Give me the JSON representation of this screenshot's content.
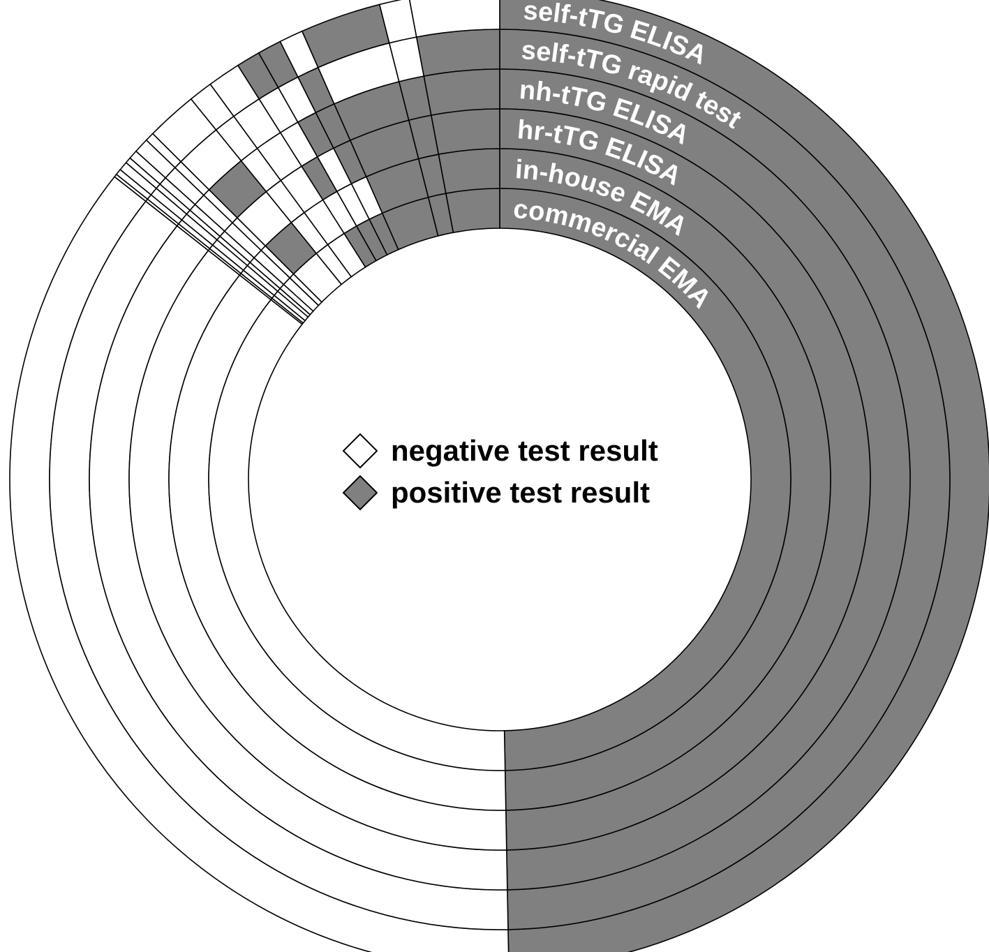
{
  "chart_data": {
    "type": "concentric-ring",
    "description_order": "rings listed outermost to innermost; segments listed clockwise from 12 o'clock",
    "colors": {
      "positive": "#808080",
      "negative": "#ffffff",
      "stroke": "#000000"
    },
    "legend": {
      "placement": "center",
      "items": [
        {
          "label": "negative test result",
          "result": "negative",
          "icon": "diamond-outline"
        },
        {
          "label": "positive test result",
          "result": "positive",
          "icon": "diamond-filled"
        }
      ]
    },
    "rings": [
      {
        "label": "self-tTG ELISA",
        "segments": [
          {
            "pct": 50.4,
            "result": "positive"
          },
          {
            "pct": 36.4,
            "result": "negative"
          },
          {
            "pct": 0.1,
            "result": "negative"
          },
          {
            "pct": 0.2,
            "result": "negative"
          },
          {
            "pct": 0.3,
            "result": "negative"
          },
          {
            "pct": 0.2,
            "result": "negative"
          },
          {
            "pct": 0.3,
            "result": "negative"
          },
          {
            "pct": 0.5,
            "result": "negative"
          },
          {
            "pct": 0.3,
            "result": "negative"
          },
          {
            "pct": 1.7,
            "result": "negative"
          },
          {
            "pct": 0.8,
            "result": "negative"
          },
          {
            "pct": 1.1,
            "result": "negative"
          },
          {
            "pct": 0.8,
            "result": "positive"
          },
          {
            "pct": 0.8,
            "result": "positive"
          },
          {
            "pct": 0.8,
            "result": "negative"
          },
          {
            "pct": 2.7,
            "result": "positive"
          },
          {
            "pct": 1.0,
            "result": "negative"
          },
          {
            "pct": 3.0,
            "result": "negative"
          }
        ]
      },
      {
        "label": "self-tTG rapid test",
        "segments": [
          {
            "pct": 50.4,
            "result": "positive"
          },
          {
            "pct": 36.4,
            "result": "negative"
          },
          {
            "pct": 0.1,
            "result": "negative"
          },
          {
            "pct": 0.2,
            "result": "negative"
          },
          {
            "pct": 0.3,
            "result": "negative"
          },
          {
            "pct": 0.2,
            "result": "negative"
          },
          {
            "pct": 0.3,
            "result": "negative"
          },
          {
            "pct": 0.5,
            "result": "negative"
          },
          {
            "pct": 0.3,
            "result": "negative"
          },
          {
            "pct": 1.7,
            "result": "negative"
          },
          {
            "pct": 0.8,
            "result": "negative"
          },
          {
            "pct": 1.1,
            "result": "negative"
          },
          {
            "pct": 0.8,
            "result": "negative"
          },
          {
            "pct": 0.8,
            "result": "negative"
          },
          {
            "pct": 0.8,
            "result": "positive"
          },
          {
            "pct": 2.7,
            "result": "negative"
          },
          {
            "pct": 1.0,
            "result": "negative"
          },
          {
            "pct": 3.0,
            "result": "positive"
          }
        ]
      },
      {
        "label": "nh-tTG ELISA",
        "segments": [
          {
            "pct": 50.4,
            "result": "positive"
          },
          {
            "pct": 36.4,
            "result": "negative"
          },
          {
            "pct": 0.1,
            "result": "negative"
          },
          {
            "pct": 0.2,
            "result": "negative"
          },
          {
            "pct": 0.3,
            "result": "negative"
          },
          {
            "pct": 0.2,
            "result": "negative"
          },
          {
            "pct": 0.3,
            "result": "negative"
          },
          {
            "pct": 0.5,
            "result": "negative"
          },
          {
            "pct": 0.3,
            "result": "negative"
          },
          {
            "pct": 1.7,
            "result": "positive"
          },
          {
            "pct": 0.8,
            "result": "negative"
          },
          {
            "pct": 1.1,
            "result": "negative"
          },
          {
            "pct": 0.8,
            "result": "negative"
          },
          {
            "pct": 0.8,
            "result": "positive"
          },
          {
            "pct": 0.8,
            "result": "positive"
          },
          {
            "pct": 2.7,
            "result": "positive"
          },
          {
            "pct": 1.0,
            "result": "positive"
          },
          {
            "pct": 3.0,
            "result": "positive"
          }
        ]
      },
      {
        "label": "hr-tTG ELISA",
        "segments": [
          {
            "pct": 50.4,
            "result": "positive"
          },
          {
            "pct": 36.4,
            "result": "negative"
          },
          {
            "pct": 0.1,
            "result": "negative"
          },
          {
            "pct": 0.2,
            "result": "negative"
          },
          {
            "pct": 0.3,
            "result": "negative"
          },
          {
            "pct": 0.2,
            "result": "negative"
          },
          {
            "pct": 0.3,
            "result": "negative"
          },
          {
            "pct": 0.5,
            "result": "negative"
          },
          {
            "pct": 0.3,
            "result": "negative"
          },
          {
            "pct": 1.7,
            "result": "negative"
          },
          {
            "pct": 0.8,
            "result": "negative"
          },
          {
            "pct": 1.1,
            "result": "negative"
          },
          {
            "pct": 0.8,
            "result": "positive"
          },
          {
            "pct": 0.8,
            "result": "negative"
          },
          {
            "pct": 0.8,
            "result": "positive"
          },
          {
            "pct": 2.7,
            "result": "positive"
          },
          {
            "pct": 1.0,
            "result": "positive"
          },
          {
            "pct": 3.0,
            "result": "positive"
          }
        ]
      },
      {
        "label": "in-house EMA",
        "segments": [
          {
            "pct": 50.4,
            "result": "positive"
          },
          {
            "pct": 36.4,
            "result": "negative"
          },
          {
            "pct": 0.1,
            "result": "negative"
          },
          {
            "pct": 0.2,
            "result": "negative"
          },
          {
            "pct": 0.3,
            "result": "negative"
          },
          {
            "pct": 0.2,
            "result": "negative"
          },
          {
            "pct": 0.3,
            "result": "negative"
          },
          {
            "pct": 0.5,
            "result": "negative"
          },
          {
            "pct": 0.3,
            "result": "negative"
          },
          {
            "pct": 1.7,
            "result": "positive"
          },
          {
            "pct": 0.8,
            "result": "negative"
          },
          {
            "pct": 1.1,
            "result": "negative"
          },
          {
            "pct": 0.8,
            "result": "negative"
          },
          {
            "pct": 0.8,
            "result": "negative"
          },
          {
            "pct": 0.8,
            "result": "negative"
          },
          {
            "pct": 2.7,
            "result": "positive"
          },
          {
            "pct": 1.0,
            "result": "positive"
          },
          {
            "pct": 3.0,
            "result": "positive"
          }
        ]
      },
      {
        "label": "commercial EMA",
        "segments": [
          {
            "pct": 50.4,
            "result": "positive"
          },
          {
            "pct": 36.4,
            "result": "negative"
          },
          {
            "pct": 0.1,
            "result": "negative"
          },
          {
            "pct": 0.2,
            "result": "negative"
          },
          {
            "pct": 0.3,
            "result": "negative"
          },
          {
            "pct": 0.2,
            "result": "negative"
          },
          {
            "pct": 0.3,
            "result": "negative"
          },
          {
            "pct": 0.5,
            "result": "negative"
          },
          {
            "pct": 0.3,
            "result": "negative"
          },
          {
            "pct": 1.7,
            "result": "negative"
          },
          {
            "pct": 0.8,
            "result": "negative"
          },
          {
            "pct": 1.1,
            "result": "negative"
          },
          {
            "pct": 0.8,
            "result": "positive"
          },
          {
            "pct": 0.8,
            "result": "positive"
          },
          {
            "pct": 0.8,
            "result": "positive"
          },
          {
            "pct": 2.7,
            "result": "positive"
          },
          {
            "pct": 1.0,
            "result": "positive"
          },
          {
            "pct": 3.0,
            "result": "positive"
          }
        ]
      }
    ]
  }
}
